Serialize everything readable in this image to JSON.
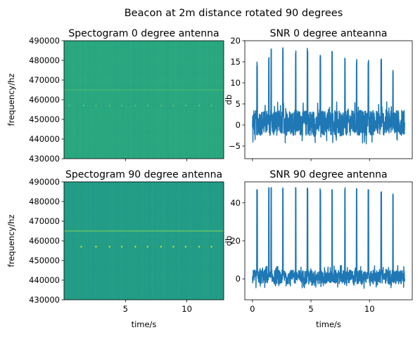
{
  "suptitle": "Beacon at 2m distance rotated 90 degrees",
  "colors": {
    "spec_bg_top": "#2aa87f",
    "spec_bg_bottom": "#239d86",
    "spec_line": "#6cc86a",
    "spec_dot": "#e6e419",
    "snr_line": "#1f77b4"
  },
  "chart_data": [
    {
      "type": "heatmap",
      "title": "Spectogram 0 degree antenna",
      "ylabel": "frequency/hz",
      "xlabel": "",
      "xlim": [
        0,
        13
      ],
      "ylim": [
        430000,
        490000
      ],
      "yticks": [
        430000,
        440000,
        450000,
        460000,
        470000,
        480000,
        490000
      ],
      "yticklabels": [
        "430000",
        "440000",
        "450000",
        "460000",
        "470000",
        "480000",
        "490000"
      ],
      "xticks": [
        5,
        10
      ],
      "xticklabels": [],
      "carrier_hz": 465000,
      "beacon_hz": 457000,
      "beacon_times": [
        0.4,
        1.6,
        2.6,
        3.7,
        4.7,
        5.8,
        6.8,
        7.9,
        8.9,
        9.9,
        11.0,
        12.0
      ],
      "grid": false
    },
    {
      "type": "line",
      "title": "SNR 0 degree anteanna",
      "ylabel": "db",
      "xlabel": "",
      "xlim": [
        -0.65,
        13.65
      ],
      "ylim": [
        -8,
        20
      ],
      "yticks": [
        -5,
        0,
        5,
        10,
        15,
        20
      ],
      "yticklabels": [
        "−5",
        "0",
        "5",
        "10",
        "15",
        "20"
      ],
      "xticks": [
        0,
        5,
        10
      ],
      "xticklabels": [],
      "noise_floor_db": 0.5,
      "noise_range_db": [
        -5,
        5
      ],
      "peak_times": [
        0.4,
        1.4,
        1.6,
        2.6,
        3.7,
        4.7,
        5.8,
        6.8,
        7.9,
        8.9,
        9.9,
        11.0,
        12.0
      ],
      "peak_values": [
        15,
        16,
        18.5,
        18.5,
        18,
        18.5,
        17,
        17.5,
        16.5,
        16,
        15.5,
        16,
        13
      ],
      "grid": false
    },
    {
      "type": "heatmap",
      "title": "Spectogram 90 degree antenna",
      "ylabel": "frequency/hz",
      "xlabel": "time/s",
      "xlim": [
        0,
        13
      ],
      "ylim": [
        430000,
        490000
      ],
      "yticks": [
        430000,
        440000,
        450000,
        460000,
        470000,
        480000,
        490000
      ],
      "yticklabels": [
        "430000",
        "440000",
        "450000",
        "460000",
        "470000",
        "480000",
        "490000"
      ],
      "xticks": [
        5,
        10
      ],
      "xticklabels": [
        "5",
        "10"
      ],
      "carrier_hz": 465000,
      "beacon_hz": 457000,
      "beacon_times": [
        1.4,
        2.6,
        3.7,
        4.7,
        5.8,
        6.8,
        7.9,
        8.9,
        9.9,
        11.0,
        12.0
      ],
      "grid": false
    },
    {
      "type": "line",
      "title": "SNR 90 degree antenna",
      "ylabel": "db",
      "xlabel": "time/s",
      "xlim": [
        -0.65,
        13.65
      ],
      "ylim": [
        -11,
        51
      ],
      "yticks": [
        0,
        20,
        40
      ],
      "yticklabels": [
        "0",
        "20",
        "40"
      ],
      "xticks": [
        0,
        5,
        10
      ],
      "xticklabels": [
        "0",
        "5",
        "10"
      ],
      "noise_floor_db": 1,
      "noise_range_db": [
        -6,
        6
      ],
      "peak_times": [
        0.4,
        1.4,
        1.6,
        2.6,
        3.7,
        4.7,
        5.8,
        6.8,
        7.9,
        8.9,
        9.9,
        11.0,
        12.0
      ],
      "peak_values": [
        47,
        48,
        48.5,
        48,
        48,
        48,
        47.5,
        47.5,
        48,
        47.5,
        47,
        46.5,
        45
      ],
      "grid": false
    }
  ]
}
